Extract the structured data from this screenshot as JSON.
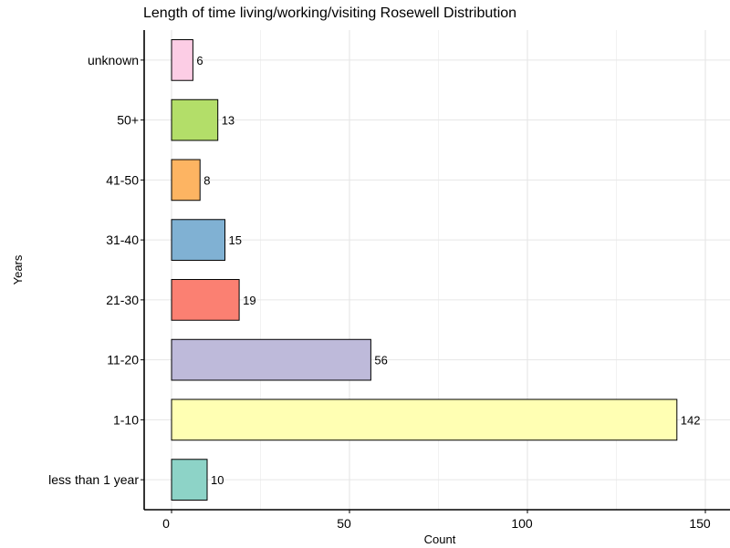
{
  "chart_data": {
    "type": "bar",
    "orientation": "horizontal",
    "title": "Length of time living/working/visiting Rosewell Distribution",
    "xlabel": "Count",
    "ylabel": "Years",
    "xlim": [
      0,
      158
    ],
    "xticks": [
      0,
      50,
      100,
      150
    ],
    "grid": true,
    "categories": [
      "less than 1 year",
      "1-10",
      "11-20",
      "21-30",
      "31-40",
      "41-50",
      "50+",
      "unknown"
    ],
    "values": [
      10,
      142,
      56,
      19,
      15,
      8,
      13,
      6
    ],
    "colors": [
      "#8DD3C7",
      "#FFFFB3",
      "#BEBADA",
      "#FB8072",
      "#80B1D3",
      "#FDB462",
      "#B3DE69",
      "#FCCDE5"
    ]
  }
}
